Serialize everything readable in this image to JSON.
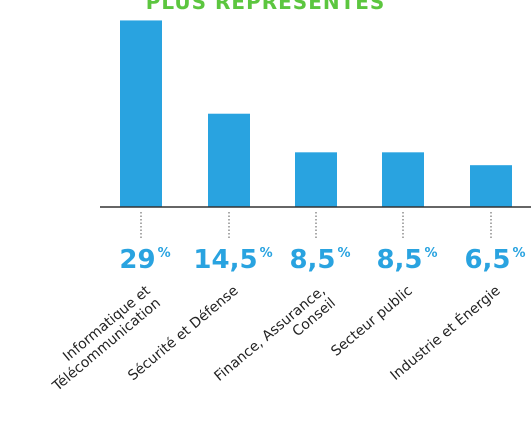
{
  "chart_data": {
    "type": "bar",
    "title": "PLUS REPRÉSENTÉS",
    "categories": [
      [
        "Informatique et",
        "Télécommunication"
      ],
      [
        "Sécurité et Défense"
      ],
      [
        "Finance, Assurance,",
        "Conseil"
      ],
      [
        "Secteur public"
      ],
      [
        "Industrie et Énergie"
      ]
    ],
    "values": [
      29,
      14.5,
      8.5,
      8.5,
      6.5
    ],
    "value_labels": [
      "29",
      "14,5",
      "8,5",
      "8,5",
      "6,5"
    ],
    "unit": "%",
    "ylim": [
      0,
      30
    ],
    "grid": false,
    "colors": {
      "bar": "#29a3e0",
      "value_text": "#29a3e0",
      "title": "#5cc63f",
      "axis": "#333333",
      "label": "#222222"
    }
  }
}
